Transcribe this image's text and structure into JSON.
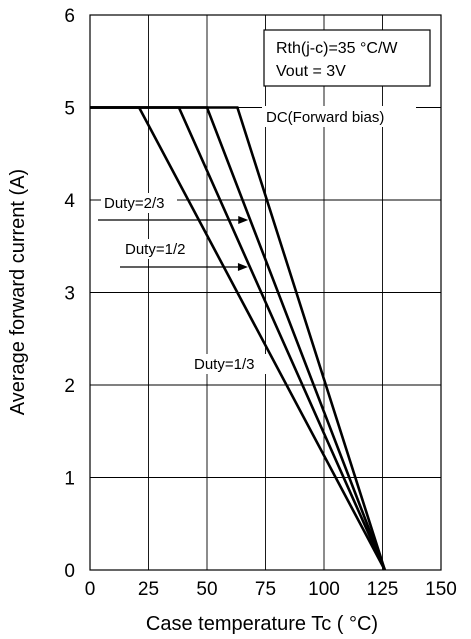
{
  "chart_data": {
    "type": "line",
    "xlabel": "Case temperature  Tc  ( °C)",
    "ylabel": "Average forward current  (A)",
    "xlim": [
      0,
      150
    ],
    "ylim": [
      0,
      6
    ],
    "x_ticks": [
      "0",
      "25",
      "50",
      "75",
      "100",
      "125",
      "150"
    ],
    "y_ticks": [
      "0",
      "1",
      "2",
      "3",
      "4",
      "5",
      "6"
    ],
    "grid": true,
    "series": [
      {
        "name": "DC(Forward bias)",
        "x": [
          0,
          63,
          126
        ],
        "y": [
          5,
          5,
          0
        ]
      },
      {
        "name": "Duty=2/3",
        "x": [
          0,
          50,
          126
        ],
        "y": [
          5,
          5,
          0
        ]
      },
      {
        "name": "Duty=1/2",
        "x": [
          0,
          38,
          126
        ],
        "y": [
          5,
          5,
          0
        ]
      },
      {
        "name": "Duty=1/3",
        "x": [
          0,
          21,
          126
        ],
        "y": [
          5,
          5,
          0
        ]
      }
    ],
    "annotation_box": {
      "line1": "Rth(j-c)=35 °C/W",
      "line2": "Vout  = 3V"
    }
  }
}
